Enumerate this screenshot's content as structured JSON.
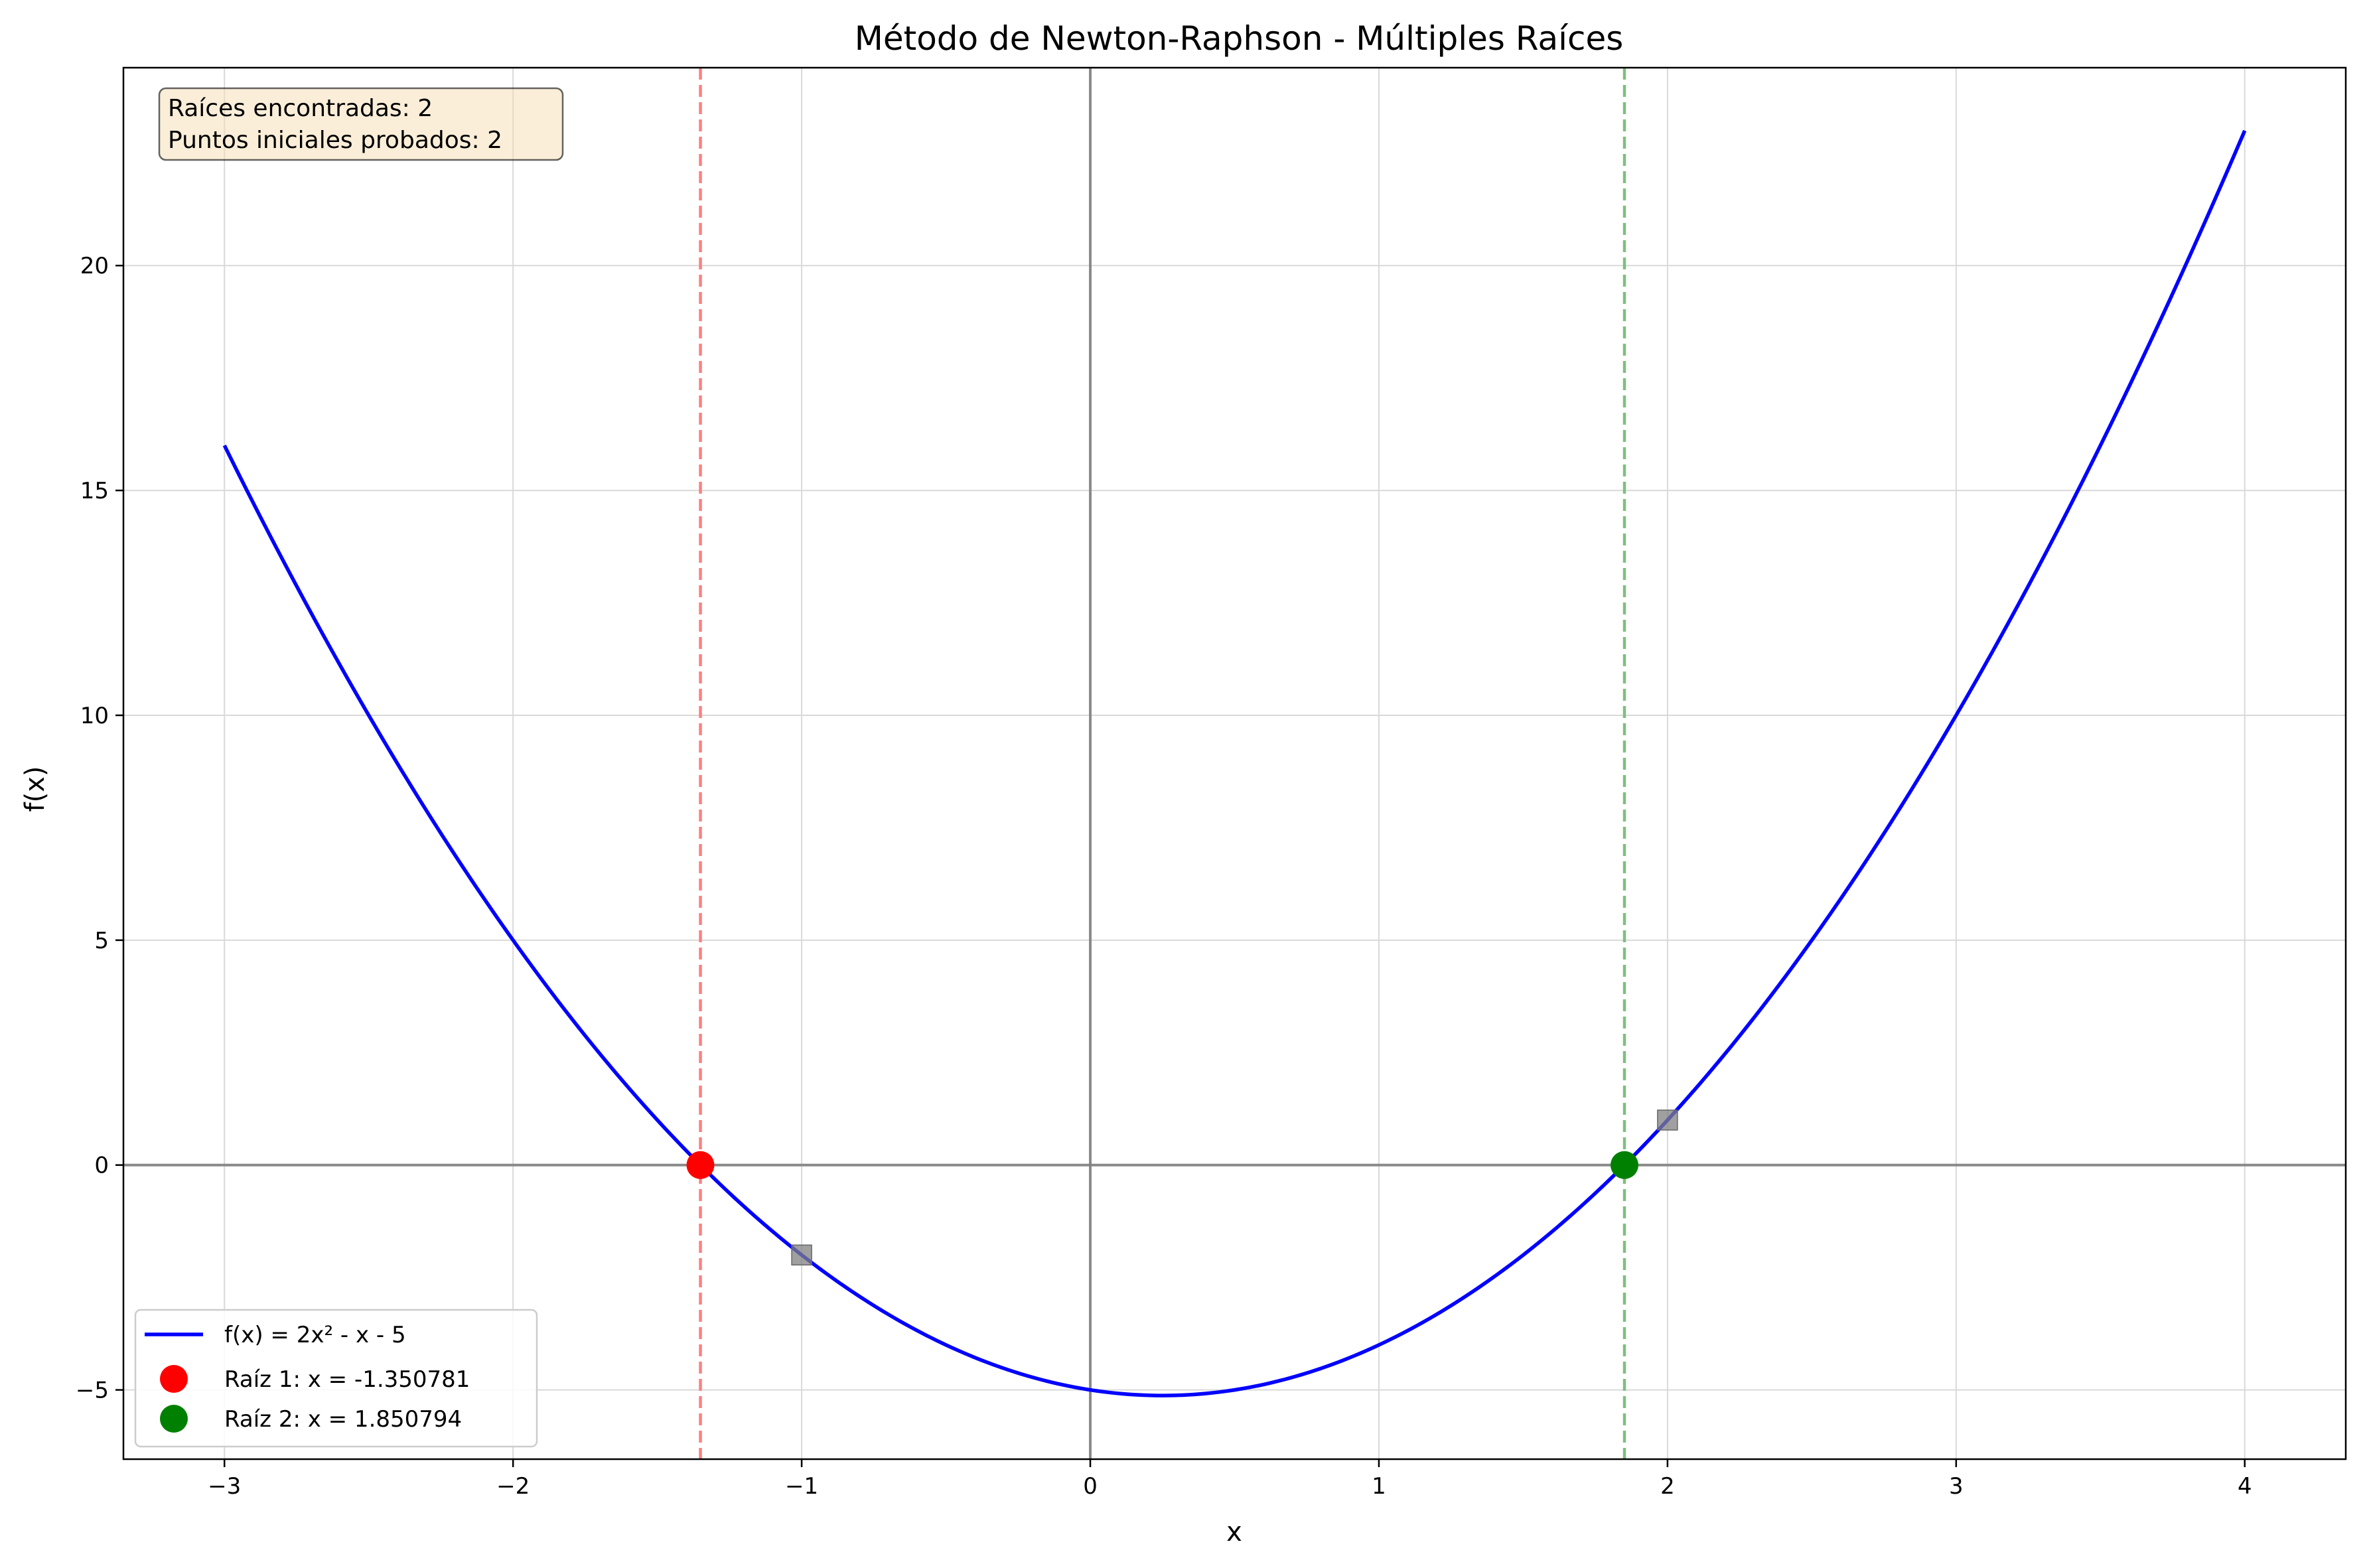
{
  "chart_data": {
    "type": "line",
    "title": "Método de Newton-Raphson - Múltiples Raíces",
    "xlabel": "x",
    "ylabel": "f(x)",
    "xlim": [
      -3.35,
      4.35
    ],
    "ylim": [
      -6.54,
      24.4
    ],
    "xticks": [
      -3,
      -2,
      -1,
      0,
      1,
      2,
      3,
      4
    ],
    "yticks": [
      -5,
      0,
      5,
      10,
      15,
      20
    ],
    "xtick_labels": [
      "−3",
      "−2",
      "−1",
      "0",
      "1",
      "2",
      "3",
      "4"
    ],
    "ytick_labels": [
      "−5",
      "0",
      "5",
      "10",
      "15",
      "20"
    ],
    "grid": true,
    "function": {
      "label": "f(x) = 2x² - x - 5",
      "coefficients": [
        2,
        -1,
        -5
      ],
      "x_range": [
        -3,
        4
      ],
      "color": "#0000ff"
    },
    "roots": [
      {
        "label": "Raíz 1: x = -1.350781",
        "x": -1.350781,
        "y": 0,
        "color": "#ff0000",
        "line_color": "#ff7f7f"
      },
      {
        "label": "Raíz 2: x = 1.850794",
        "x": 1.850794,
        "y": 0,
        "color": "#008000",
        "line_color": "#7fbf7f"
      }
    ],
    "initial_points": [
      {
        "x": -1,
        "y": -2,
        "color": "#808080"
      },
      {
        "x": 2,
        "y": 1,
        "color": "#808080"
      }
    ],
    "info_box": {
      "lines": [
        "Raíces encontradas: 2",
        "Puntos iniciales probados: 2"
      ],
      "placement": "top-left"
    },
    "legend_placement": "bottom-left"
  }
}
